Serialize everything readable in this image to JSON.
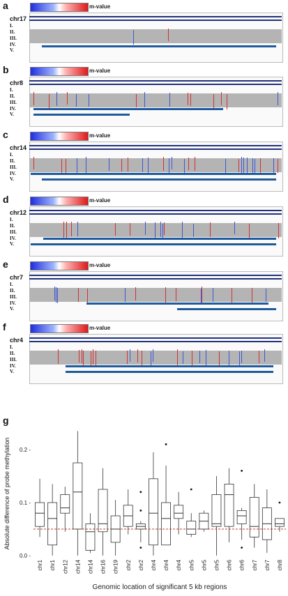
{
  "panels": [
    {
      "id": "a",
      "chrom": "chr17",
      "legend_label": "m-value",
      "legend_min": "0.0",
      "legend_max": "1.0"
    },
    {
      "id": "b",
      "chrom": "chr8",
      "legend_label": "m-value",
      "legend_min": "0.0",
      "legend_max": "1.0"
    },
    {
      "id": "c",
      "chrom": "chr14",
      "legend_label": "m-value",
      "legend_min": "0.0",
      "legend_max": "1.0"
    },
    {
      "id": "d",
      "chrom": "chr12",
      "legend_label": "m-value",
      "legend_min": "0.0",
      "legend_max": "1.0"
    },
    {
      "id": "e",
      "chrom": "chr7",
      "legend_label": "m-value",
      "legend_min": "0.0",
      "legend_max": "1.0"
    },
    {
      "id": "f",
      "chrom": "chr4",
      "legend_label": "m-value",
      "legend_min": "0.0",
      "legend_max": "1.0"
    }
  ],
  "track_labels": [
    "I.",
    "II.",
    "III.",
    "IV.",
    "V."
  ],
  "panel_g": {
    "label": "g",
    "chart_data": {
      "type": "box",
      "ylabel": "Absolute difference of probe methylation",
      "xlabel": "Genomic location of significant 5 kb regions",
      "ylim": [
        0.0,
        0.25
      ],
      "yticks": [
        0.0,
        0.1,
        0.2
      ],
      "ytick_labels": [
        "0.0 -",
        "0.1 -",
        "0.2 -"
      ],
      "reference_line": 0.05,
      "categories": [
        "chr1",
        "chr1",
        "chr12",
        "chr14",
        "chr14",
        "chr16",
        "chr19",
        "chr2",
        "chr2",
        "chr4",
        "chr4",
        "chr4",
        "chr5",
        "chr5",
        "chr5",
        "chr6",
        "chr6",
        "chr7",
        "chr7",
        "chr8"
      ],
      "boxes": [
        {
          "min": 0.035,
          "q1": 0.055,
          "median": 0.08,
          "q3": 0.1,
          "max": 0.145,
          "outliers": []
        },
        {
          "min": 0.0,
          "q1": 0.02,
          "median": 0.07,
          "q3": 0.1,
          "max": 0.135,
          "outliers": []
        },
        {
          "min": 0.045,
          "q1": 0.08,
          "median": 0.09,
          "q3": 0.115,
          "max": 0.13,
          "outliers": []
        },
        {
          "min": 0.0,
          "q1": 0.05,
          "median": 0.12,
          "q3": 0.175,
          "max": 0.235,
          "outliers": []
        },
        {
          "min": 0.005,
          "q1": 0.01,
          "median": 0.045,
          "q3": 0.06,
          "max": 0.08,
          "outliers": []
        },
        {
          "min": 0.0,
          "q1": 0.045,
          "median": 0.06,
          "q3": 0.125,
          "max": 0.165,
          "outliers": []
        },
        {
          "min": 0.0,
          "q1": 0.025,
          "median": 0.05,
          "q3": 0.075,
          "max": 0.105,
          "outliers": []
        },
        {
          "min": 0.04,
          "q1": 0.055,
          "median": 0.075,
          "q3": 0.095,
          "max": 0.125,
          "outliers": []
        },
        {
          "min": 0.025,
          "q1": 0.05,
          "median": 0.055,
          "q3": 0.06,
          "max": 0.065,
          "outliers": [
            0.015,
            0.085,
            0.12
          ]
        },
        {
          "min": 0.0,
          "q1": 0.02,
          "median": 0.08,
          "q3": 0.145,
          "max": 0.195,
          "outliers": []
        },
        {
          "min": 0.02,
          "q1": 0.02,
          "median": 0.07,
          "q3": 0.1,
          "max": 0.17,
          "outliers": [
            0.21
          ]
        },
        {
          "min": 0.04,
          "q1": 0.07,
          "median": 0.08,
          "q3": 0.095,
          "max": 0.12,
          "outliers": []
        },
        {
          "min": 0.035,
          "q1": 0.04,
          "median": 0.05,
          "q3": 0.065,
          "max": 0.08,
          "outliers": [
            0.125
          ]
        },
        {
          "min": 0.045,
          "q1": 0.05,
          "median": 0.065,
          "q3": 0.08,
          "max": 0.085,
          "outliers": []
        },
        {
          "min": 0.0,
          "q1": 0.055,
          "median": 0.06,
          "q3": 0.115,
          "max": 0.15,
          "outliers": []
        },
        {
          "min": 0.025,
          "q1": 0.055,
          "median": 0.115,
          "q3": 0.135,
          "max": 0.165,
          "outliers": []
        },
        {
          "min": 0.03,
          "q1": 0.06,
          "median": 0.075,
          "q3": 0.085,
          "max": 0.09,
          "outliers": [
            0.015,
            0.16
          ]
        },
        {
          "min": 0.015,
          "q1": 0.035,
          "median": 0.055,
          "q3": 0.11,
          "max": 0.135,
          "outliers": []
        },
        {
          "min": 0.005,
          "q1": 0.03,
          "median": 0.06,
          "q3": 0.09,
          "max": 0.125,
          "outliers": []
        },
        {
          "min": 0.045,
          "q1": 0.055,
          "median": 0.06,
          "q3": 0.07,
          "max": 0.07,
          "outliers": [
            0.1
          ]
        }
      ]
    }
  }
}
